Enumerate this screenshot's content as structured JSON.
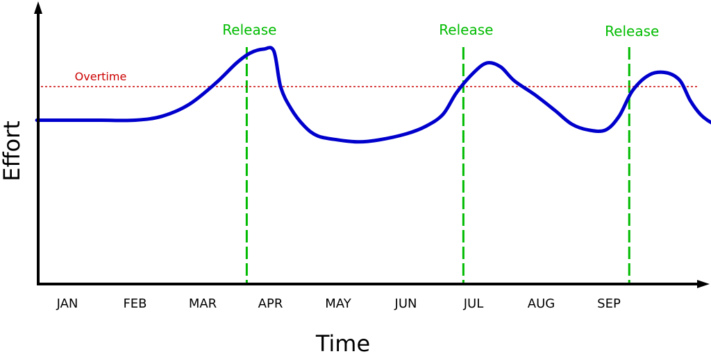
{
  "chart_data": {
    "type": "line",
    "xlabel": "Time",
    "ylabel": "Effort",
    "categories": [
      "JAN",
      "FEB",
      "MAR",
      "APR",
      "MAY",
      "JUN",
      "JUL",
      "AUG",
      "SEP"
    ],
    "x_unit": "month index (JAN = 0)",
    "y_unit": "relative effort (0 = baseline axis, 1 = overtime line)",
    "xlim": [
      -0.45,
      9.5
    ],
    "ylim": [
      0,
      1.21
    ],
    "grid": false,
    "legend": "none",
    "series": [
      {
        "points": [
          [
            -0.45,
            0.83
          ],
          [
            0.0,
            0.83
          ],
          [
            0.5,
            0.83
          ],
          [
            1.0,
            0.83
          ],
          [
            1.4,
            0.85
          ],
          [
            1.8,
            0.91
          ],
          [
            2.2,
            1.02
          ],
          [
            2.5,
            1.12
          ],
          [
            2.7,
            1.17
          ],
          [
            2.9,
            1.19
          ],
          [
            3.05,
            1.18
          ],
          [
            3.15,
            1.0
          ],
          [
            3.3,
            0.89
          ],
          [
            3.5,
            0.8
          ],
          [
            3.7,
            0.75
          ],
          [
            4.0,
            0.73
          ],
          [
            4.3,
            0.72
          ],
          [
            4.6,
            0.73
          ],
          [
            5.0,
            0.76
          ],
          [
            5.3,
            0.8
          ],
          [
            5.55,
            0.86
          ],
          [
            5.75,
            0.97
          ],
          [
            6.0,
            1.07
          ],
          [
            6.2,
            1.12
          ],
          [
            6.4,
            1.1
          ],
          [
            6.6,
            1.03
          ],
          [
            6.9,
            0.96
          ],
          [
            7.2,
            0.88
          ],
          [
            7.45,
            0.81
          ],
          [
            7.7,
            0.78
          ],
          [
            7.95,
            0.78
          ],
          [
            8.15,
            0.85
          ],
          [
            8.35,
            0.98
          ],
          [
            8.6,
            1.06
          ],
          [
            8.85,
            1.07
          ],
          [
            9.05,
            1.03
          ],
          [
            9.2,
            0.93
          ],
          [
            9.35,
            0.86
          ],
          [
            9.5,
            0.82
          ],
          [
            9.65,
            0.8
          ],
          [
            9.8,
            0.79
          ]
        ],
        "color": "#0000cc"
      }
    ],
    "threshold": {
      "label": "Overtime",
      "y": 1.0,
      "color": "#cc0000"
    },
    "markers": [
      {
        "label": "Release",
        "x": 2.65,
        "color": "#00bb00"
      },
      {
        "label": "Release",
        "x": 5.85,
        "color": "#00bb00"
      },
      {
        "label": "Release",
        "x": 8.3,
        "color": "#00bb00"
      }
    ]
  }
}
